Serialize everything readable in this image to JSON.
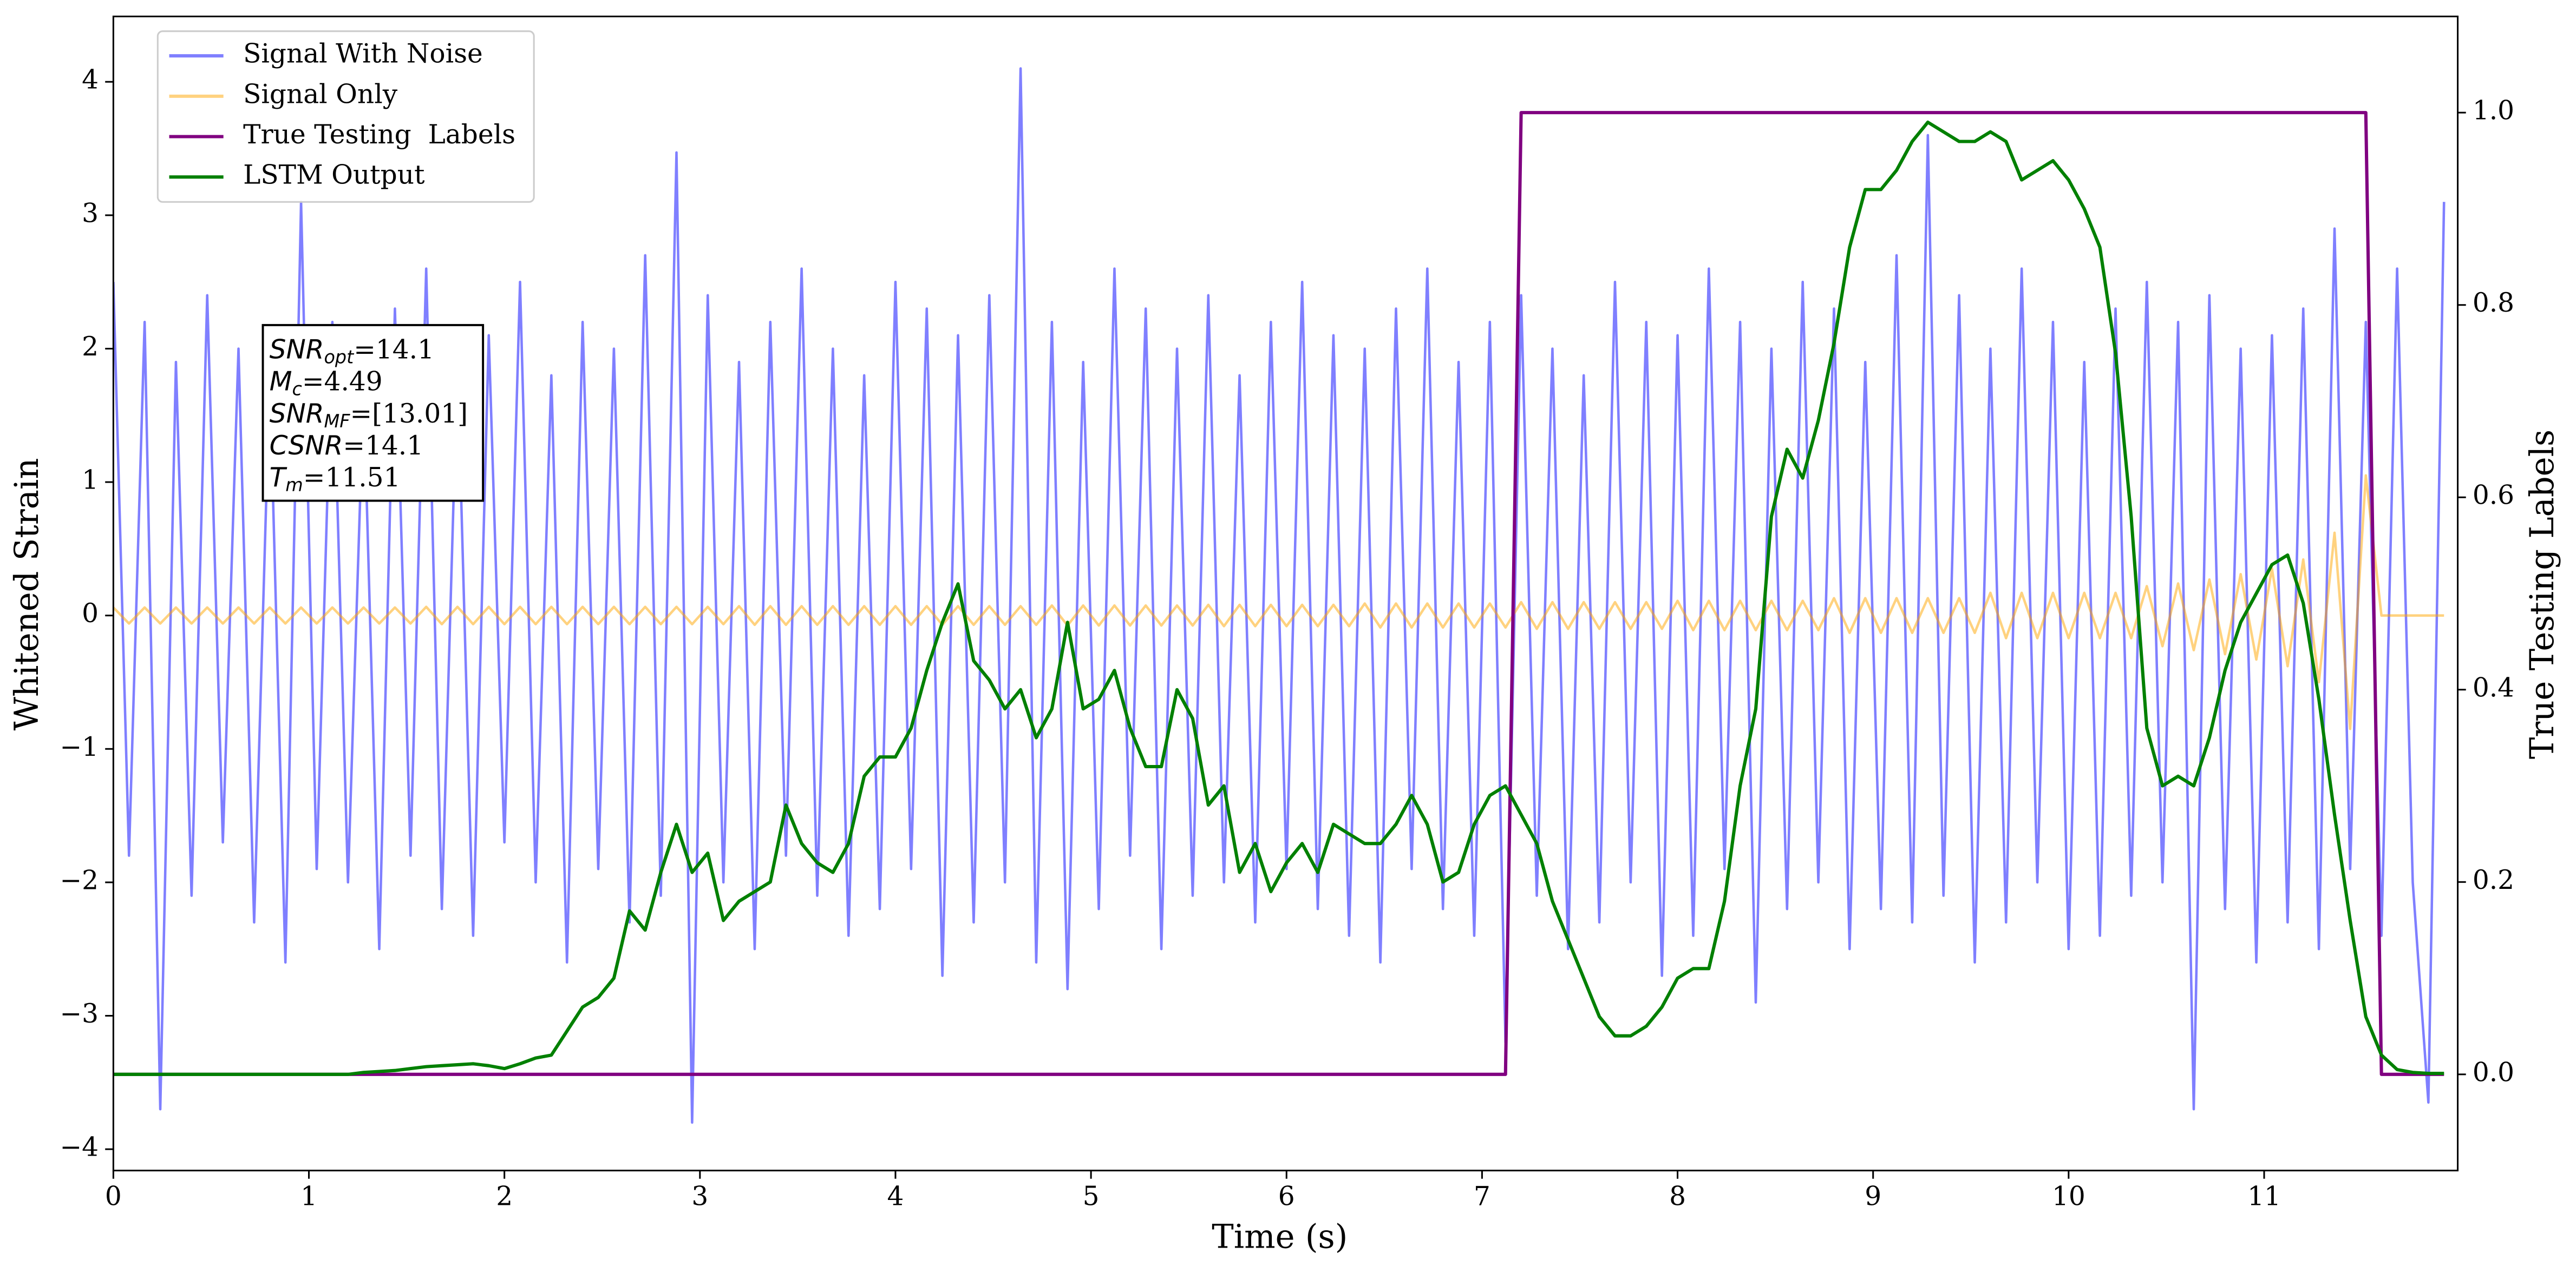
{
  "chart_data": {
    "type": "line",
    "xlabel": "Time (s)",
    "ylabel": "Whitened Strain",
    "y2label": "True Testing Labels",
    "xlim": [
      0,
      11.99
    ],
    "ylim": [
      -4.16,
      4.49
    ],
    "y2lim": [
      -0.1,
      1.1
    ],
    "xticks": [
      0,
      1,
      2,
      3,
      4,
      5,
      6,
      7,
      8,
      9,
      10,
      11
    ],
    "yticks": [
      {
        "value": -4,
        "label": "−4"
      },
      {
        "value": -3,
        "label": "−3"
      },
      {
        "value": -2,
        "label": "−2"
      },
      {
        "value": -1,
        "label": "−1"
      },
      0,
      1,
      2,
      3,
      4
    ],
    "y2ticks": [
      {
        "value": 0,
        "label": "0.0"
      },
      0.2,
      0.4,
      0.6,
      0.8,
      {
        "value": 1,
        "label": "1.0"
      }
    ],
    "legend": "upper left",
    "x": [
      0,
      0.08,
      0.16,
      0.24,
      0.32,
      0.4,
      0.48,
      0.56,
      0.64,
      0.72,
      0.8,
      0.88,
      0.96,
      1.04,
      1.12,
      1.2,
      1.28,
      1.36,
      1.44,
      1.52,
      1.6,
      1.68,
      1.76,
      1.84,
      1.92,
      2,
      2.08,
      2.16,
      2.24,
      2.32,
      2.4,
      2.48,
      2.56,
      2.64,
      2.72,
      2.8,
      2.88,
      2.96,
      3.04,
      3.12,
      3.2,
      3.28,
      3.36,
      3.44,
      3.52,
      3.6,
      3.68,
      3.76,
      3.84,
      3.92,
      4,
      4.08,
      4.16,
      4.24,
      4.32,
      4.4,
      4.48,
      4.56,
      4.64,
      4.72,
      4.8,
      4.88,
      4.96,
      5.04,
      5.12,
      5.2,
      5.28,
      5.36,
      5.44,
      5.52,
      5.6,
      5.68,
      5.76,
      5.84,
      5.92,
      6,
      6.08,
      6.16,
      6.24,
      6.32,
      6.4,
      6.48,
      6.56,
      6.64,
      6.72,
      6.8,
      6.88,
      6.96,
      7.04,
      7.12,
      7.2,
      7.28,
      7.36,
      7.44,
      7.52,
      7.6,
      7.68,
      7.76,
      7.84,
      7.92,
      8,
      8.08,
      8.16,
      8.24,
      8.32,
      8.4,
      8.48,
      8.56,
      8.64,
      8.72,
      8.8,
      8.88,
      8.96,
      9.04,
      9.12,
      9.2,
      9.28,
      9.36,
      9.44,
      9.52,
      9.6,
      9.68,
      9.76,
      9.84,
      9.92,
      10,
      10.08,
      10.16,
      10.24,
      10.32,
      10.4,
      10.48,
      10.56,
      10.64,
      10.72,
      10.8,
      10.88,
      10.96,
      11.04,
      11.12,
      11.2,
      11.28,
      11.36,
      11.44,
      11.52,
      11.6,
      11.68,
      11.76,
      11.84,
      11.92
    ],
    "series": [
      {
        "name": "Signal With Noise",
        "color": "#0000ff",
        "opacity": 0.5,
        "axis": "y",
        "values": [
          2.5,
          -1.8,
          2.2,
          -3.7,
          1.9,
          -2.1,
          2.4,
          -1.7,
          2.0,
          -2.3,
          1.8,
          -2.6,
          3.1,
          -1.9,
          2.2,
          -2.0,
          1.7,
          -2.5,
          2.3,
          -1.8,
          2.6,
          -2.2,
          1.9,
          -2.4,
          2.1,
          -1.7,
          2.5,
          -2.0,
          1.8,
          -2.6,
          2.2,
          -1.9,
          2.0,
          -2.3,
          2.7,
          -2.1,
          3.47,
          -3.8,
          2.4,
          -2.0,
          1.9,
          -2.5,
          2.2,
          -1.8,
          2.6,
          -2.1,
          2.0,
          -2.4,
          1.8,
          -2.2,
          2.5,
          -1.9,
          2.3,
          -2.7,
          2.1,
          -2.3,
          2.4,
          -2.0,
          4.1,
          -2.6,
          2.2,
          -2.8,
          1.9,
          -2.2,
          2.6,
          -1.8,
          2.3,
          -2.5,
          2.0,
          -2.1,
          2.4,
          -2.0,
          1.8,
          -2.3,
          2.2,
          -1.9,
          2.5,
          -2.2,
          2.1,
          -2.4,
          2.0,
          -2.6,
          2.3,
          -1.9,
          2.6,
          -2.2,
          1.9,
          -2.4,
          2.2,
          -3.2,
          2.4,
          -2.1,
          2.0,
          -2.5,
          1.8,
          -2.3,
          2.5,
          -2.0,
          2.2,
          -2.7,
          2.1,
          -2.4,
          2.6,
          -1.9,
          2.2,
          -2.9,
          2.0,
          -2.2,
          2.5,
          -2.0,
          2.3,
          -2.5,
          1.9,
          -2.2,
          2.7,
          -2.3,
          3.6,
          -2.1,
          2.4,
          -2.6,
          2.0,
          -2.3,
          2.6,
          -2.0,
          2.2,
          -2.5,
          1.9,
          -2.4,
          2.3,
          -2.1,
          2.5,
          -2.0,
          2.2,
          -3.7,
          2.4,
          -2.2,
          2.0,
          -2.6,
          2.1,
          -2.3,
          2.3,
          -2.5,
          2.9,
          -1.9,
          2.2,
          -2.4,
          2.6,
          -2.0,
          -3.65,
          3.1
        ]
      },
      {
        "name": "Signal Only",
        "color": "#ffa500",
        "opacity": 0.5,
        "axis": "y",
        "values": [
          0.06,
          -0.06,
          0.06,
          -0.06,
          0.06,
          -0.06,
          0.06,
          -0.06,
          0.06,
          -0.06,
          0.06,
          -0.06,
          0.06,
          -0.06,
          0.06,
          -0.06,
          0.06,
          -0.06,
          0.06,
          -0.06,
          0.065,
          -0.065,
          0.065,
          -0.065,
          0.065,
          -0.065,
          0.065,
          -0.065,
          0.065,
          -0.065,
          0.065,
          -0.065,
          0.065,
          -0.065,
          0.065,
          -0.065,
          0.065,
          -0.065,
          0.065,
          -0.065,
          0.07,
          -0.07,
          0.07,
          -0.07,
          0.07,
          -0.07,
          0.07,
          -0.07,
          0.07,
          -0.07,
          0.07,
          -0.07,
          0.07,
          -0.07,
          0.07,
          -0.07,
          0.07,
          -0.07,
          0.07,
          -0.07,
          0.075,
          -0.075,
          0.075,
          -0.075,
          0.075,
          -0.075,
          0.075,
          -0.075,
          0.075,
          -0.075,
          0.08,
          -0.08,
          0.08,
          -0.08,
          0.08,
          -0.08,
          0.08,
          -0.08,
          0.08,
          -0.08,
          0.09,
          -0.09,
          0.09,
          -0.09,
          0.09,
          -0.09,
          0.09,
          -0.09,
          0.09,
          -0.09,
          0.1,
          -0.1,
          0.1,
          -0.1,
          0.1,
          -0.1,
          0.1,
          -0.1,
          0.1,
          -0.1,
          0.11,
          -0.11,
          0.11,
          -0.11,
          0.11,
          -0.11,
          0.11,
          -0.11,
          0.11,
          -0.11,
          0.13,
          -0.13,
          0.13,
          -0.13,
          0.13,
          -0.13,
          0.13,
          -0.13,
          0.13,
          -0.13,
          0.17,
          -0.17,
          0.17,
          -0.17,
          0.17,
          -0.17,
          0.17,
          -0.17,
          0.17,
          -0.17,
          0.22,
          -0.23,
          0.24,
          -0.26,
          0.27,
          -0.29,
          0.31,
          -0.33,
          0.35,
          -0.38,
          0.42,
          -0.5,
          0.62,
          -0.85,
          1.05,
          0,
          0,
          0,
          0,
          0
        ]
      },
      {
        "name": "True Testing  Labels",
        "color": "#800080",
        "opacity": 1,
        "axis": "y2",
        "values": [
          0,
          0,
          0,
          0,
          0,
          0,
          0,
          0,
          0,
          0,
          0,
          0,
          0,
          0,
          0,
          0,
          0,
          0,
          0,
          0,
          0,
          0,
          0,
          0,
          0,
          0,
          0,
          0,
          0,
          0,
          0,
          0,
          0,
          0,
          0,
          0,
          0,
          0,
          0,
          0,
          0,
          0,
          0,
          0,
          0,
          0,
          0,
          0,
          0,
          0,
          0,
          0,
          0,
          0,
          0,
          0,
          0,
          0,
          0,
          0,
          0,
          0,
          0,
          0,
          0,
          0,
          0,
          0,
          0,
          0,
          0,
          0,
          0,
          0,
          0,
          0,
          0,
          0,
          0,
          0,
          0,
          0,
          0,
          0,
          0,
          0,
          0,
          0,
          0,
          0,
          1,
          1,
          1,
          1,
          1,
          1,
          1,
          1,
          1,
          1,
          1,
          1,
          1,
          1,
          1,
          1,
          1,
          1,
          1,
          1,
          1,
          1,
          1,
          1,
          1,
          1,
          1,
          1,
          1,
          1,
          1,
          1,
          1,
          1,
          1,
          1,
          1,
          1,
          1,
          1,
          1,
          1,
          1,
          1,
          1,
          1,
          1,
          1,
          1,
          1,
          1,
          1,
          1,
          1,
          1,
          0,
          0,
          0,
          0,
          0
        ]
      },
      {
        "name": "LSTM Output",
        "color": "#008000",
        "opacity": 1,
        "axis": "y2",
        "values": [
          0,
          0,
          0,
          0,
          0,
          0,
          0,
          0,
          0,
          0,
          0,
          0,
          0,
          0,
          0,
          0,
          0.002,
          0.003,
          0.004,
          0.006,
          0.008,
          0.009,
          0.01,
          0.011,
          0.009,
          0.006,
          0.011,
          0.017,
          0.02,
          0.045,
          0.07,
          0.08,
          0.1,
          0.17,
          0.15,
          0.21,
          0.26,
          0.21,
          0.23,
          0.16,
          0.18,
          0.19,
          0.2,
          0.28,
          0.24,
          0.22,
          0.21,
          0.24,
          0.31,
          0.33,
          0.33,
          0.36,
          0.42,
          0.47,
          0.51,
          0.43,
          0.41,
          0.38,
          0.4,
          0.35,
          0.38,
          0.47,
          0.38,
          0.39,
          0.42,
          0.36,
          0.32,
          0.32,
          0.4,
          0.37,
          0.28,
          0.3,
          0.21,
          0.24,
          0.19,
          0.22,
          0.24,
          0.21,
          0.26,
          0.25,
          0.24,
          0.24,
          0.26,
          0.29,
          0.26,
          0.2,
          0.21,
          0.26,
          0.29,
          0.3,
          0.27,
          0.24,
          0.18,
          0.14,
          0.1,
          0.06,
          0.04,
          0.04,
          0.05,
          0.07,
          0.1,
          0.11,
          0.11,
          0.18,
          0.3,
          0.38,
          0.58,
          0.65,
          0.62,
          0.68,
          0.76,
          0.86,
          0.92,
          0.92,
          0.94,
          0.97,
          0.99,
          0.98,
          0.97,
          0.97,
          0.98,
          0.97,
          0.93,
          0.94,
          0.95,
          0.93,
          0.9,
          0.86,
          0.75,
          0.58,
          0.36,
          0.3,
          0.31,
          0.3,
          0.35,
          0.42,
          0.47,
          0.5,
          0.53,
          0.54,
          0.49,
          0.39,
          0.27,
          0.16,
          0.06,
          0.02,
          0.005,
          0.002,
          0.001,
          0.001
        ]
      }
    ],
    "annotation": [
      {
        "base": "SNR",
        "sub": "opt",
        "rest": "=14.1"
      },
      {
        "base": "M",
        "sub": "c",
        "rest": "=4.49"
      },
      {
        "base": "SNR",
        "sub": "MF",
        "rest": "=[13.01]"
      },
      {
        "base": "CSNR",
        "sub": null,
        "rest": "=14.1"
      },
      {
        "base": "T",
        "sub": "m",
        "rest": "=11.51"
      }
    ]
  }
}
